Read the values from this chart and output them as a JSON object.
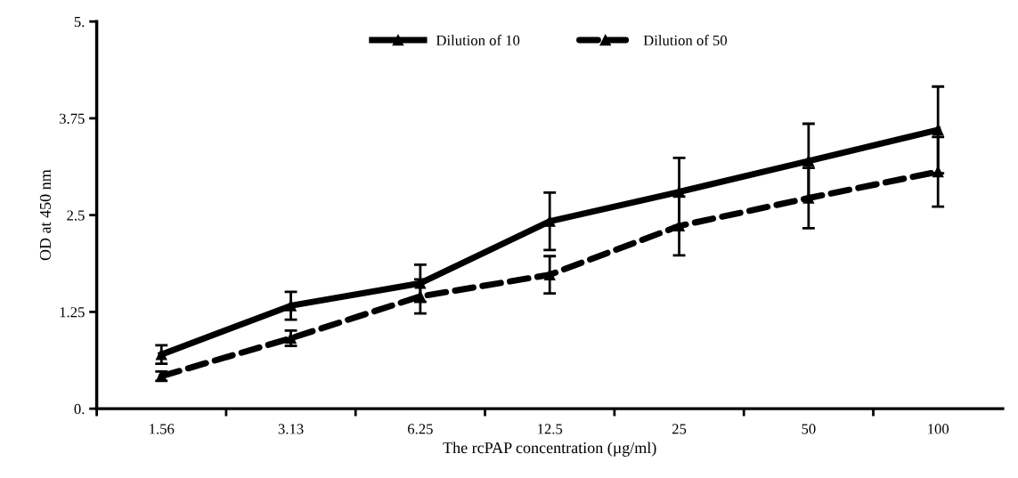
{
  "chart_data": {
    "type": "line",
    "xlabel": "The rcPAP concentration (µg/ml)",
    "ylabel": "OD at 450 nm",
    "categories": [
      "1.56",
      "3.13",
      "6.25",
      "12.5",
      "25",
      "50",
      "100"
    ],
    "series": [
      {
        "name": "Dilution of 10",
        "color": "#000000",
        "line_style": "solid",
        "values": [
          0.7,
          1.33,
          1.62,
          2.42,
          2.8,
          3.2,
          3.6
        ],
        "errors": [
          0.12,
          0.18,
          0.24,
          0.37,
          0.44,
          0.48,
          0.56
        ]
      },
      {
        "name": "Dilution of 50",
        "color": "#000000",
        "line_style": "dashed",
        "values": [
          0.42,
          0.91,
          1.45,
          1.73,
          2.36,
          2.72,
          3.06
        ],
        "errors": [
          0.06,
          0.1,
          0.22,
          0.24,
          0.38,
          0.39,
          0.45
        ]
      }
    ],
    "marker": "triangle",
    "ylim": [
      0,
      5
    ],
    "yticks": [
      {
        "value": 0,
        "label": "0."
      },
      1.25,
      2.5,
      3.75,
      {
        "value": 5,
        "label": "5."
      }
    ],
    "grid": false,
    "legend": "top"
  }
}
